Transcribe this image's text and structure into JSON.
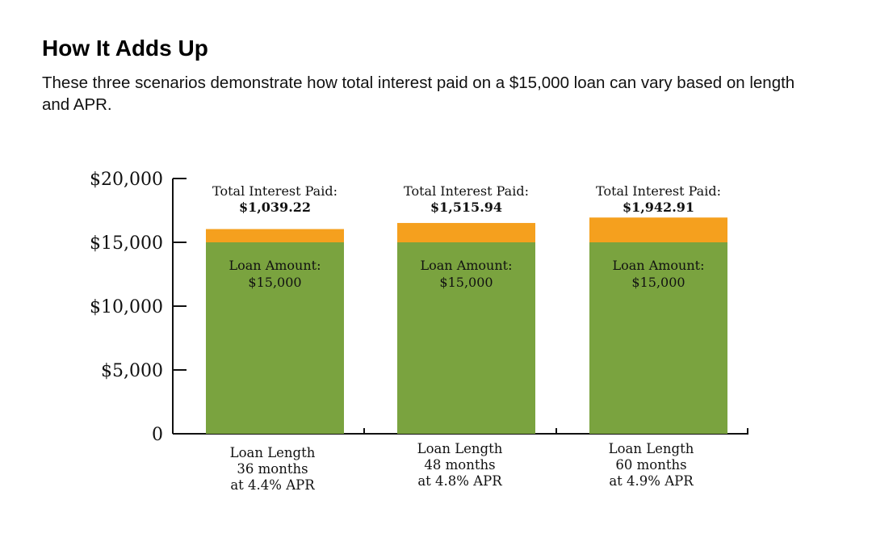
{
  "header": {
    "title": "How It Adds Up",
    "subtitle": "These three scenarios demonstrate how total interest paid on a $15,000 loan can vary based on length and APR."
  },
  "colors": {
    "loan": "#7aa33f",
    "interest": "#f5a01e",
    "axis": "#111111"
  },
  "chart_data": {
    "type": "bar",
    "stacked": true,
    "title": "",
    "xlabel": "",
    "ylabel": "",
    "ylim": [
      0,
      20000
    ],
    "yticks": [
      0,
      5000,
      10000,
      15000,
      20000
    ],
    "ytick_labels": [
      "0",
      "$5,000",
      "$10,000",
      "$15,000",
      "$20,000"
    ],
    "grid": false,
    "categories": [
      [
        "Loan Length",
        "36 months",
        "at 4.4% APR"
      ],
      [
        "Loan Length",
        "48 months",
        "at 4.8% APR"
      ],
      [
        "Loan Length",
        "60 months",
        "at 4.9% APR"
      ]
    ],
    "series": [
      {
        "values": [
          15000,
          15000,
          15000
        ],
        "color": "#7aa33f"
      },
      {
        "values": [
          1039.22,
          1515.94,
          1942.91
        ],
        "color": "#f5a01e"
      }
    ],
    "annotations": {
      "interest_caption": "Total Interest Paid:",
      "interest_values": [
        "$1,039.22",
        "$1,515.94",
        "$1,942.91"
      ],
      "loan_caption": "Loan Amount:",
      "loan_values": [
        "$15,000",
        "$15,000",
        "$15,000"
      ]
    }
  }
}
